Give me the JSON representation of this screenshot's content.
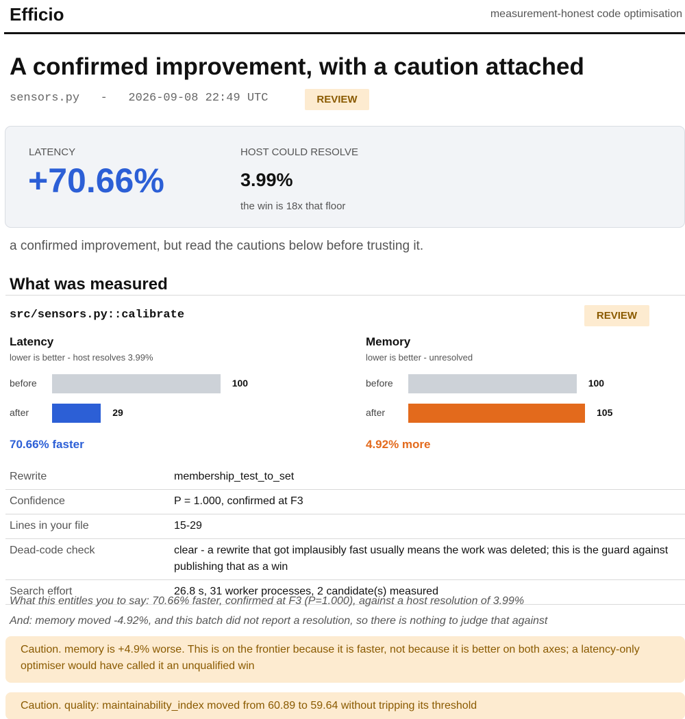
{
  "header": {
    "brand": "Efficio",
    "tagline": "measurement-honest code optimisation"
  },
  "report": {
    "title": "A confirmed improvement, with a caution attached",
    "meta_line": "sensors.py   -   2026-09-08 22:49 UTC",
    "status_badge": "REVIEW"
  },
  "summary": {
    "latency_label": "LATENCY",
    "latency_value": "+70.66%",
    "host_label": "HOST COULD RESOLVE",
    "host_value": "3.99%",
    "host_note": "the win is 18x that floor",
    "accent_color": "#2c5fd6"
  },
  "verdict": "a confirmed improvement, but read the cautions below before trusting it.",
  "measured": {
    "section_title": "What was measured",
    "function_name": "src/sensors.py::calibrate",
    "function_badge": "REVIEW",
    "latency": {
      "title": "Latency",
      "subtitle": "lower is better - host resolves 3.99%",
      "before_label": "before",
      "before_value": 100,
      "after_label": "after",
      "after_value": 29,
      "delta_text": "70.66% faster",
      "after_color": "#2c5fd6"
    },
    "memory": {
      "title": "Memory",
      "subtitle": "lower is better - unresolved",
      "before_label": "before",
      "before_value": 100,
      "after_label": "after",
      "after_value": 105,
      "delta_text": "4.92% more",
      "after_color": "#e36a1c"
    },
    "details": [
      {
        "key": "Rewrite",
        "value": "membership_test_to_set"
      },
      {
        "key": "Confidence",
        "value": "P = 1.000, confirmed at F3"
      },
      {
        "key": "Lines in your file",
        "value": "15-29"
      },
      {
        "key": "Dead-code check",
        "value": "clear - a rewrite that got implausibly fast usually means the work was deleted; this is the guard against publishing that as a win"
      },
      {
        "key": "Search effort",
        "value": "26.8 s, 31 worker processes, 2 candidate(s) measured"
      }
    ],
    "entitlement": "What this entitles you to say: 70.66% faster, confirmed at F3 (P=1.000), against a host resolution of 3.99%",
    "memory_note": "And: memory moved -4.92%, and this batch did not report a resolution, so there is nothing to judge that against"
  },
  "cautions": [
    "Caution. memory is +4.9% worse. This is on the frontier because it is faster, not because it is better on both axes; a latency-only optimiser would have called it an unqualified win",
    "Caution. quality: maintainability_index moved from 60.89 to 59.64 without tripping its threshold"
  ]
}
